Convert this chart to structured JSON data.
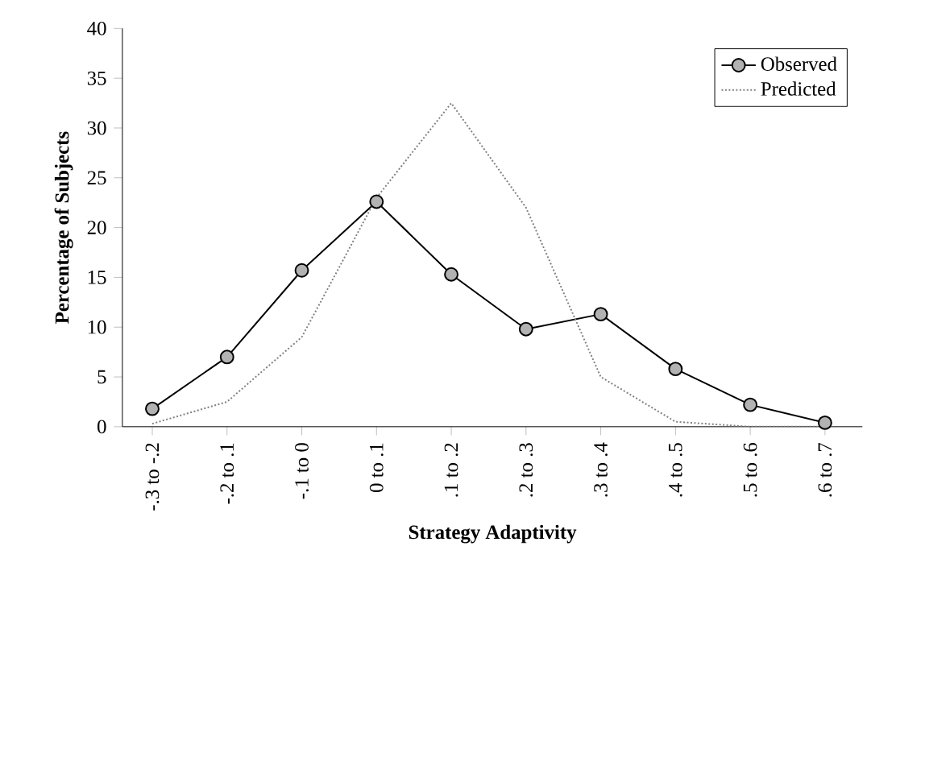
{
  "chart_data": {
    "type": "line",
    "xlabel": "Strategy Adaptivity",
    "ylabel": "Percentage of Subjects",
    "categories": [
      "-.3 to -.2",
      "-.2 to .1",
      "-.1 to 0",
      "0 to .1",
      ".1 to .2",
      ".2 to .3",
      ".3 to .4",
      ".4 to .5",
      ".5 to .6",
      ".6 to .7"
    ],
    "series": [
      {
        "name": "Observed",
        "color": "#000000",
        "marker": "circle",
        "line_style": "solid",
        "values": [
          1.8,
          7,
          15.7,
          22.6,
          15.3,
          9.8,
          11.3,
          5.8,
          2.2,
          0.4
        ]
      },
      {
        "name": "Predicted",
        "color": "#808080",
        "marker": "none",
        "line_style": "dotted",
        "values": [
          0.3,
          2.5,
          9,
          23,
          32.5,
          22,
          5,
          0.5,
          0,
          0
        ]
      }
    ],
    "ylim": [
      0,
      40
    ],
    "yticks": [
      0,
      5,
      10,
      15,
      20,
      25,
      30,
      35,
      40
    ],
    "grid": false,
    "legend": "top right"
  }
}
